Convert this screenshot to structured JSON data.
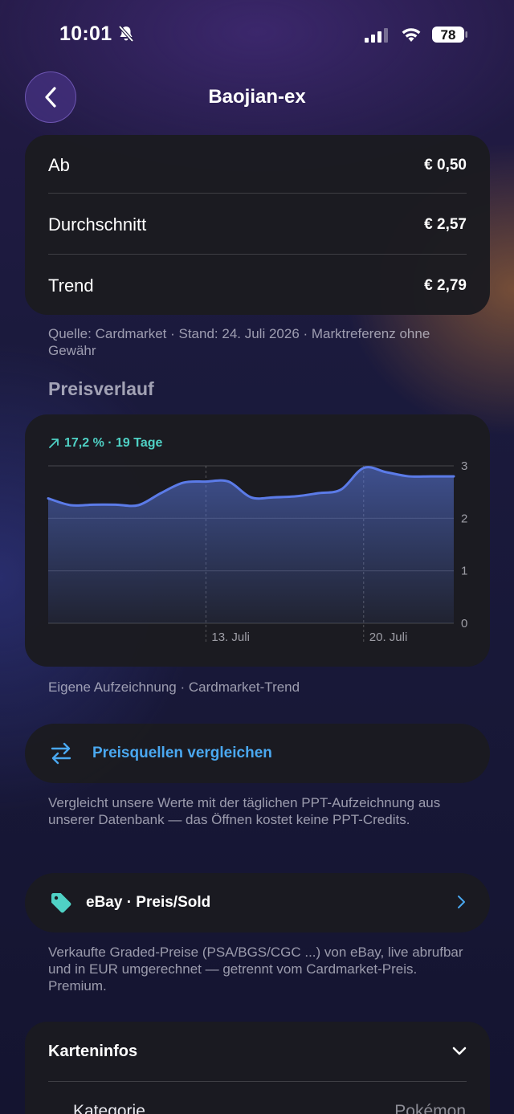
{
  "status_bar": {
    "time": "10:01",
    "battery": "78"
  },
  "header": {
    "title": "Baojian-ex"
  },
  "prices": {
    "rows": [
      {
        "label": "Ab",
        "value": "€ 0,50"
      },
      {
        "label": "Durchschnitt",
        "value": "€ 2,57"
      },
      {
        "label": "Trend",
        "value": "€ 2,79"
      }
    ],
    "source_note": "Quelle: Cardmarket · Stand: 24. Juli 2026 · Marktreferenz ohne Gewähr"
  },
  "history": {
    "section_title": "Preisverlauf",
    "trend_label": "17,2 % · 19 Tage",
    "caption": "Eigene Aufzeichnung · Cardmarket-Trend"
  },
  "chart_data": {
    "type": "area",
    "x": [
      "07-06",
      "07-07",
      "07-08",
      "07-09",
      "07-10",
      "07-11",
      "07-12",
      "07-13",
      "07-14",
      "07-15",
      "07-16",
      "07-17",
      "07-18",
      "07-19",
      "07-20",
      "07-21",
      "07-22",
      "07-23",
      "07-24"
    ],
    "series": [
      {
        "values": [
          2.38,
          2.25,
          2.26,
          2.26,
          2.25,
          2.48,
          2.68,
          2.7,
          2.7,
          2.4,
          2.4,
          2.42,
          2.48,
          2.55,
          2.96,
          2.88,
          2.8,
          2.8,
          2.8
        ]
      }
    ],
    "x_tick_labels": [
      "13. Juli",
      "20. Juli"
    ],
    "x_tick_positions": [
      "07-13",
      "07-20"
    ],
    "y_ticks": [
      0,
      1,
      2,
      3
    ],
    "ylim": [
      0,
      3
    ],
    "color": "#5b7be8",
    "grid": true
  },
  "compare": {
    "label": "Preisquellen vergleichen",
    "description": "Vergleicht unsere Werte mit der täglichen PPT-Aufzeichnung aus unserer Datenbank — das Öffnen kostet keine PPT-Credits."
  },
  "ebay": {
    "label": "eBay · Preis/Sold",
    "description": "Verkaufte Graded-Preise (PSA/BGS/CGC ...) von eBay, live abrufbar und in EUR umgerechnet — getrennt vom Cardmarket-Preis. Premium."
  },
  "card_info": {
    "title": "Karteninfos",
    "rows": [
      {
        "label": "Kategorie",
        "value": "Pokémon"
      }
    ]
  },
  "colors": {
    "accent_blue": "#4aa8f0",
    "trend_teal": "#4fd1c5",
    "chart_line": "#5b7be8"
  }
}
